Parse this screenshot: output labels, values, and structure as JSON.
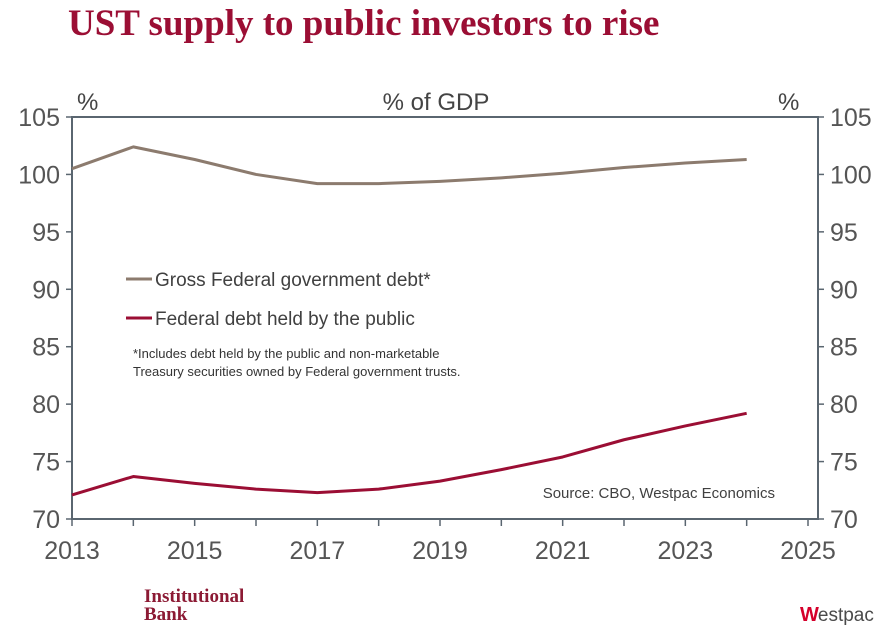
{
  "chart_data": {
    "type": "line",
    "title": "UST supply to public investors to rise",
    "subtitle": "% of GDP",
    "ylabel_left": "%",
    "ylabel_right": "%",
    "x": [
      2013,
      2014,
      2015,
      2016,
      2017,
      2018,
      2019,
      2020,
      2021,
      2022,
      2023,
      2024
    ],
    "xlim": [
      2013,
      2025
    ],
    "x_ticks": [
      "2013",
      "2015",
      "2017",
      "2019",
      "2021",
      "2023",
      "2025"
    ],
    "ylim": [
      70,
      105
    ],
    "y_ticks": [
      "70",
      "75",
      "80",
      "85",
      "90",
      "95",
      "100",
      "105"
    ],
    "series": [
      {
        "name": "Gross Federal government debt*",
        "color": "#8c7b6e",
        "values": [
          100.5,
          102.4,
          101.3,
          100.0,
          99.2,
          99.2,
          99.4,
          99.7,
          100.1,
          100.6,
          101.0,
          101.3
        ]
      },
      {
        "name": "Federal debt held by the public",
        "color": "#9b0e34",
        "values": [
          72.1,
          73.7,
          73.1,
          72.6,
          72.3,
          72.6,
          73.3,
          74.3,
          75.4,
          76.9,
          78.1,
          79.2
        ]
      }
    ],
    "footnote": [
      "*Includes debt held by the public and non-marketable",
      " Treasury securities owned by Federal government trusts."
    ],
    "source": "Source: CBO, Westpac Economics",
    "legend_position": "center-left",
    "grid": false
  },
  "logos": {
    "left": [
      "Institutional",
      "Bank"
    ],
    "right_mark": "W",
    "right_text": "estpac"
  }
}
